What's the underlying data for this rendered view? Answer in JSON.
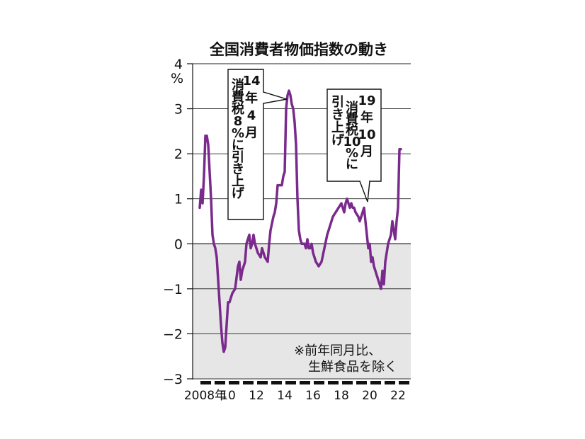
{
  "chart_data": {
    "type": "line",
    "title": "全国消費者物価指数の動き",
    "ylabel": "%",
    "ylim": [
      -3,
      4
    ],
    "yticks": [
      "4",
      "3",
      "2",
      "1",
      "0",
      "−1",
      "−2",
      "−3"
    ],
    "xticks": [
      "2008年",
      "10",
      "12",
      "14",
      "16",
      "18",
      "20",
      "22"
    ],
    "xlim": [
      2008.0,
      2022.3
    ],
    "grid": true,
    "shading": "below zero",
    "line_color": "#7a2a8c",
    "note": [
      "※前年同月比、",
      "生鮮食品を除く"
    ],
    "annotations": [
      {
        "label": "14年4月 消費税8%に引き上げ",
        "columns": [
          "14",
          "年",
          "4",
          "月",
          "消",
          "費",
          "税",
          "8",
          "%",
          "に",
          "引",
          "き",
          "上",
          "げ"
        ]
      },
      {
        "label": "19年10月 消費税10%に引き上げ",
        "columns": [
          "19",
          "年",
          "10",
          "月",
          "消",
          "費",
          "税",
          "10",
          "%",
          "に",
          "引",
          "き",
          "上",
          "げ"
        ]
      }
    ],
    "series": [
      {
        "x": [
          2008.0,
          2008.1,
          2008.2,
          2008.3,
          2008.4,
          2008.5,
          2008.6,
          2008.7,
          2008.8,
          2008.9,
          2009.0,
          2009.1,
          2009.2,
          2009.3,
          2009.4,
          2009.5,
          2009.6,
          2009.7,
          2009.8,
          2009.9,
          2010.0,
          2010.1,
          2010.2,
          2010.3,
          2010.5,
          2010.7,
          2010.8,
          2010.9,
          2011.0,
          2011.2,
          2011.3,
          2011.4,
          2011.5,
          2011.6,
          2011.7,
          2011.8,
          2011.9,
          2012.0,
          2012.1,
          2012.3,
          2012.4,
          2012.5,
          2012.6,
          2012.8,
          2012.9,
          2013.0,
          2013.2,
          2013.3,
          2013.4,
          2013.5,
          2013.6,
          2013.7,
          2013.8,
          2013.9,
          2014.0,
          2014.1,
          2014.2,
          2014.3,
          2014.4,
          2014.5,
          2014.6,
          2014.7,
          2014.8,
          2014.9,
          2015.0,
          2015.1,
          2015.2,
          2015.3,
          2015.4,
          2015.5,
          2015.6,
          2015.7,
          2015.8,
          2015.9,
          2016.0,
          2016.2,
          2016.4,
          2016.6,
          2016.8,
          2017.0,
          2017.2,
          2017.4,
          2017.6,
          2017.8,
          2018.0,
          2018.2,
          2018.3,
          2018.4,
          2018.5,
          2018.6,
          2018.7,
          2018.8,
          2018.9,
          2019.0,
          2019.2,
          2019.3,
          2019.4,
          2019.5,
          2019.6,
          2019.7,
          2019.8,
          2019.9,
          2020.0,
          2020.1,
          2020.2,
          2020.3,
          2020.4,
          2020.5,
          2020.6,
          2020.7,
          2020.8,
          2020.9,
          2021.0,
          2021.1,
          2021.2,
          2021.3,
          2021.4,
          2021.5,
          2021.6,
          2021.7,
          2021.8,
          2021.9,
          2022.0,
          2022.1,
          2022.2
        ],
        "y": [
          0.8,
          1.2,
          0.9,
          1.5,
          2.4,
          2.4,
          2.2,
          1.6,
          1.0,
          0.2,
          0.0,
          -0.1,
          -0.3,
          -0.8,
          -1.3,
          -1.8,
          -2.2,
          -2.4,
          -2.3,
          -1.8,
          -1.3,
          -1.3,
          -1.2,
          -1.1,
          -1.0,
          -0.5,
          -0.4,
          -0.8,
          -0.6,
          -0.4,
          0.0,
          0.1,
          0.2,
          -0.1,
          0.0,
          0.2,
          0.0,
          -0.1,
          -0.2,
          -0.3,
          -0.1,
          -0.2,
          -0.3,
          -0.4,
          0.0,
          0.3,
          0.6,
          0.7,
          0.9,
          1.3,
          1.3,
          1.3,
          1.3,
          1.5,
          1.6,
          3.0,
          3.3,
          3.4,
          3.3,
          3.1,
          3.0,
          2.7,
          2.2,
          1.0,
          0.3,
          0.1,
          0.0,
          0.0,
          0.0,
          -0.1,
          0.1,
          -0.1,
          -0.1,
          0.0,
          -0.2,
          -0.4,
          -0.5,
          -0.4,
          -0.1,
          0.2,
          0.4,
          0.6,
          0.7,
          0.8,
          0.9,
          0.7,
          0.9,
          1.0,
          0.9,
          0.8,
          0.9,
          0.8,
          0.8,
          0.7,
          0.6,
          0.5,
          0.6,
          0.7,
          0.8,
          0.5,
          0.2,
          -0.1,
          0.0,
          -0.4,
          -0.3,
          -0.5,
          -0.6,
          -0.7,
          -0.8,
          -0.9,
          -1.0,
          -0.6,
          -0.9,
          -0.4,
          -0.2,
          0.0,
          0.1,
          0.2,
          0.5,
          0.3,
          0.1,
          0.5,
          0.8,
          2.1,
          2.1
        ]
      }
    ]
  }
}
